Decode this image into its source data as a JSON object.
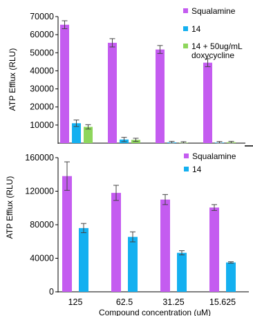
{
  "colors": {
    "squalamine": "#c45cf0",
    "cmpd14": "#14b0f0",
    "doxy": "#8ed65c",
    "axis": "#000000",
    "errorbar": "#444444"
  },
  "chart_data": [
    {
      "type": "bar",
      "categories": [
        "125",
        "62.5",
        "31.25",
        "15.625"
      ],
      "series": [
        {
          "name": "Squalamine",
          "values": [
            65500,
            55500,
            51800,
            44500
          ],
          "errors": [
            2200,
            2300,
            2200,
            2200
          ]
        },
        {
          "name": "14",
          "values": [
            11000,
            2000,
            400,
            300
          ],
          "errors": [
            1800,
            1200,
            600,
            600
          ]
        },
        {
          "name": "14 + 50ug/mL doxycycline",
          "values": [
            9000,
            1800,
            300,
            500
          ],
          "errors": [
            1200,
            900,
            500,
            500
          ]
        }
      ],
      "ylabel": "ATP Efflux (RLU)",
      "ylim": [
        0,
        70000
      ],
      "yticks": [
        "0",
        "10000",
        "20000",
        "30000",
        "40000",
        "50000",
        "60000",
        "70000"
      ],
      "ytick_values": [
        0,
        10000,
        20000,
        30000,
        40000,
        50000,
        60000,
        70000
      ],
      "legend": {
        "placement": "top-right",
        "labels": [
          "Squalamine",
          "14",
          "14 + 50ug/mL",
          "doxycycline"
        ]
      },
      "grid": false
    },
    {
      "type": "bar",
      "categories": [
        "125",
        "62.5",
        "31.25",
        "15.625"
      ],
      "series": [
        {
          "name": "Squalamine",
          "values": [
            138000,
            118000,
            110000,
            100500
          ],
          "errors": [
            17000,
            9000,
            6000,
            3500
          ]
        },
        {
          "name": "14",
          "values": [
            76000,
            65500,
            46500,
            35000
          ],
          "errors": [
            5500,
            6000,
            2500,
            800
          ]
        }
      ],
      "xlabel": "Compound concentration (uM)",
      "ylabel": "ATP Efflux (RLU)",
      "ylim": [
        0,
        160000
      ],
      "yticks": [
        "0",
        "40000",
        "80000",
        "120000",
        "160000"
      ],
      "ytick_values": [
        0,
        40000,
        80000,
        120000,
        160000
      ],
      "legend": {
        "placement": "top-right",
        "labels": [
          "Squalamine",
          "14"
        ]
      },
      "grid": false
    }
  ]
}
